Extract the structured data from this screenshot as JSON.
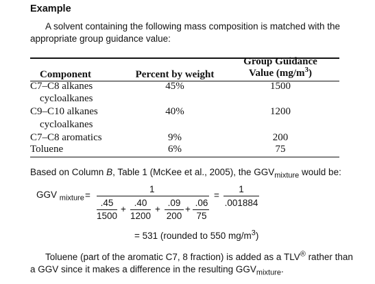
{
  "heading": "Example",
  "intro": {
    "line1": "A solvent containing the following mass composition is matched with the",
    "line2": "appropriate group guidance value:"
  },
  "table": {
    "headers": {
      "component": "Component",
      "percent": "Percent by weight",
      "ggv_line1": "Group Guidance",
      "ggv_line2_a": "Value (mg/m",
      "ggv_line2_sup": "3",
      "ggv_line2_b": ")"
    },
    "rows": [
      {
        "component": "C7–C8 alkanes",
        "component2": "cycloalkanes",
        "percent": "45%",
        "ggv": "1500"
      },
      {
        "component": "C9–C10 alkanes",
        "component2": "cycloalkanes",
        "percent": "40%",
        "ggv": "1200"
      },
      {
        "component": "C7–C8 aromatics",
        "component2": "",
        "percent": "9%",
        "ggv": "200"
      },
      {
        "component": "Toluene",
        "component2": "",
        "percent": "6%",
        "ggv": "75"
      }
    ]
  },
  "basis": {
    "a": "Based on Column ",
    "b_italic": "B",
    "c": ", Table 1 (McKee et al., 2005), the GGV",
    "sub": "mixture",
    "d": " would be:"
  },
  "equation": {
    "lhs": "GGV",
    "lhs_sub": "mixture",
    "eq": "=",
    "numerator": "1",
    "terms": [
      {
        "num": ".45",
        "den": "1500"
      },
      {
        "num": ".40",
        "den": "1200"
      },
      {
        "num": ".09",
        "den": "200"
      },
      {
        "num": ".06",
        "den": "75"
      }
    ],
    "plus": "+",
    "eq2": "=",
    "numerator2": "1",
    "denominator2": ".001884",
    "result_a": "= 531 (rounded to 550 mg/m",
    "result_sup": "3",
    "result_b": ")"
  },
  "closing": {
    "line1_a": "Toluene (part of the aromatic C7, 8 fraction) is added as a TLV",
    "line1_sup": "®",
    "line1_b": " rather than",
    "line2_a": "a GGV since it makes a difference in the resulting GGV",
    "line2_sub": "mixture",
    "line2_b": "."
  }
}
